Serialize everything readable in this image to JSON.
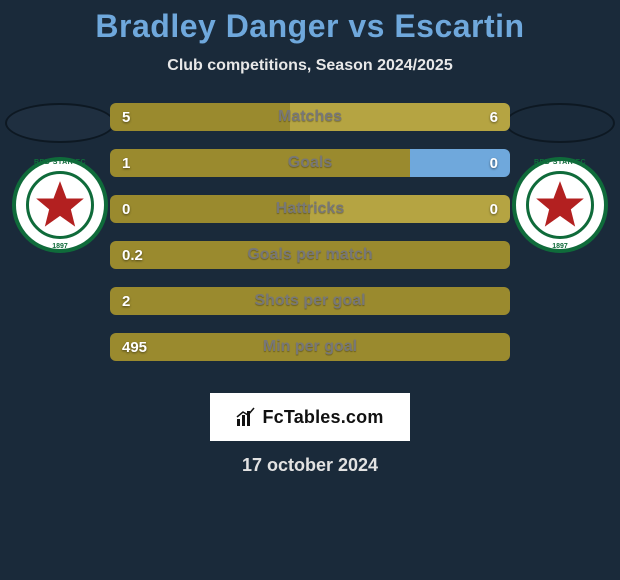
{
  "title": "Bradley Danger vs Escartin",
  "title_color": "#6fa8dc",
  "subtitle": "Club competitions, Season 2024/2025",
  "date": "17 october 2024",
  "background_color": "#1a2a3a",
  "player_left": {
    "club_name": "RED STAR FC",
    "club_year": "1897",
    "star_color": "#b32020",
    "ring_color": "#0f6b3a"
  },
  "player_right": {
    "club_name": "RED STAR FC",
    "club_year": "1897",
    "star_color": "#b32020",
    "ring_color": "#0f6b3a"
  },
  "bar_colors": {
    "left_half": "#9a8a2e",
    "right_half": "#b5a442",
    "right_empty": "#6fa8dc"
  },
  "stats": [
    {
      "label": "Matches",
      "left_val": "5",
      "right_val": "6",
      "left_pct": 45,
      "right_pct": 55,
      "right_filled": true
    },
    {
      "label": "Goals",
      "left_val": "1",
      "right_val": "0",
      "left_pct": 75,
      "right_pct": 25,
      "right_filled": false
    },
    {
      "label": "Hattricks",
      "left_val": "0",
      "right_val": "0",
      "left_pct": 50,
      "right_pct": 50,
      "right_filled": true
    },
    {
      "label": "Goals per match",
      "left_val": "0.2",
      "right_val": "",
      "left_pct": 100,
      "right_pct": 0,
      "right_filled": true
    },
    {
      "label": "Shots per goal",
      "left_val": "2",
      "right_val": "",
      "left_pct": 100,
      "right_pct": 0,
      "right_filled": true
    },
    {
      "label": "Min per goal",
      "left_val": "495",
      "right_val": "",
      "left_pct": 100,
      "right_pct": 0,
      "right_filled": true
    }
  ],
  "branding": "FcTables.com"
}
